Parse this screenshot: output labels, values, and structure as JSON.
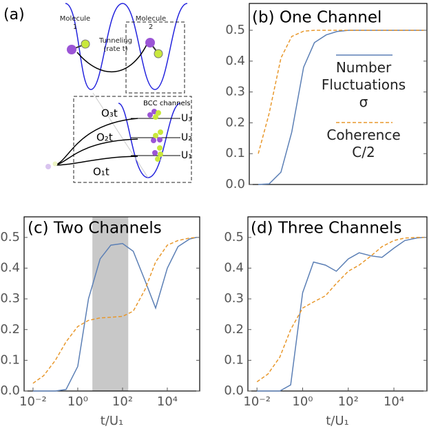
{
  "diagram": {
    "label": "(a)",
    "molecule_1": "Molecule 1",
    "molecule_2": "Molecule 2",
    "tunneling": "Tunneling (rate t)",
    "bcc": "BCC channels",
    "channels": [
      "O₃t",
      "O₂t",
      "O₁t"
    ],
    "levels": [
      "U₃",
      "U₂",
      "U₁"
    ]
  },
  "chart_data": [
    {
      "type": "line",
      "title": "(b) One Channel",
      "xscale": "log",
      "xlim": [
        0.004,
        280000
      ],
      "ylim": [
        0,
        0.587
      ],
      "yticks": [
        {
          "value": 0,
          "label": "0.0"
        },
        0.1,
        0.2,
        0.3,
        0.4,
        0.5
      ],
      "x": [
        0.01,
        0.03,
        0.1,
        0.3,
        1,
        3,
        10,
        30,
        100,
        300,
        1000,
        3000,
        10000,
        30000,
        100000,
        200000
      ],
      "series": [
        {
          "name": "Number Fluctuations σ",
          "color": "#5b7fb5",
          "dashed": false,
          "values": [
            0,
            0.002,
            0.04,
            0.17,
            0.38,
            0.46,
            0.485,
            0.496,
            0.5,
            0.5,
            0.5,
            0.5,
            0.5,
            0.5,
            0.5,
            0.5
          ]
        },
        {
          "name": "Coherence C/2",
          "color": "#e8972a",
          "dashed": true,
          "values": [
            0.1,
            0.23,
            0.41,
            0.48,
            0.497,
            0.5,
            0.5,
            0.5,
            0.5,
            0.5,
            0.5,
            0.5,
            0.5,
            0.5,
            0.5,
            0.5
          ]
        }
      ]
    },
    {
      "type": "line",
      "title": "(c) Two Channels",
      "xlabel": "t/U₁",
      "xscale": "log",
      "xlim": [
        0.004,
        280000
      ],
      "ylim": [
        0,
        0.567
      ],
      "yticks": [
        {
          "value": 0,
          "label": "0.0"
        },
        0.1,
        0.2,
        0.3,
        0.4,
        0.5
      ],
      "xticks": [
        {
          "value": 0.01,
          "label": "10⁻²"
        },
        {
          "value": 1,
          "label": "10⁰"
        },
        {
          "value": 100,
          "label": "10²"
        },
        {
          "value": 10000,
          "label": "10⁴"
        }
      ],
      "shaded_region": [
        4.5,
        180
      ],
      "x": [
        0.01,
        0.03,
        0.1,
        0.3,
        1,
        3,
        10,
        30,
        100,
        300,
        1000,
        3000,
        10000,
        30000,
        100000,
        200000
      ],
      "series": [
        {
          "name": "Number Fluctuations σ",
          "color": "#5b7fb5",
          "dashed": false,
          "values": [
            0,
            0,
            0,
            0.005,
            0.08,
            0.3,
            0.43,
            0.475,
            0.48,
            0.455,
            0.36,
            0.27,
            0.4,
            0.47,
            0.495,
            0.5
          ]
        },
        {
          "name": "Coherence C/2",
          "color": "#e8972a",
          "dashed": true,
          "values": [
            0.025,
            0.05,
            0.1,
            0.16,
            0.21,
            0.23,
            0.238,
            0.24,
            0.243,
            0.26,
            0.33,
            0.42,
            0.475,
            0.49,
            0.498,
            0.5
          ]
        }
      ]
    },
    {
      "type": "line",
      "title": "(d) Three Channels",
      "xlabel": "t/U₁",
      "xscale": "log",
      "xlim": [
        0.004,
        280000
      ],
      "ylim": [
        0,
        0.567
      ],
      "yticks": [
        {
          "value": 0,
          "label": "0.0"
        },
        0.1,
        0.2,
        0.3,
        0.4,
        0.5
      ],
      "xticks": [
        {
          "value": 0.01,
          "label": "10⁻²"
        },
        {
          "value": 1,
          "label": "10⁰"
        },
        {
          "value": 100,
          "label": "10²"
        },
        {
          "value": 10000,
          "label": "10⁴"
        }
      ],
      "x": [
        0.01,
        0.03,
        0.1,
        0.3,
        1,
        3,
        10,
        30,
        100,
        300,
        1000,
        3000,
        10000,
        30000,
        100000,
        200000
      ],
      "series": [
        {
          "name": "Number Fluctuations σ",
          "color": "#5b7fb5",
          "dashed": false,
          "values": [
            0,
            0,
            0,
            0.02,
            0.32,
            0.42,
            0.41,
            0.39,
            0.43,
            0.45,
            0.44,
            0.435,
            0.465,
            0.49,
            0.498,
            0.5
          ]
        },
        {
          "name": "Coherence C/2",
          "color": "#e8972a",
          "dashed": true,
          "values": [
            0.03,
            0.055,
            0.11,
            0.2,
            0.27,
            0.29,
            0.31,
            0.35,
            0.39,
            0.41,
            0.44,
            0.47,
            0.49,
            0.498,
            0.5,
            0.5
          ]
        }
      ]
    }
  ]
}
